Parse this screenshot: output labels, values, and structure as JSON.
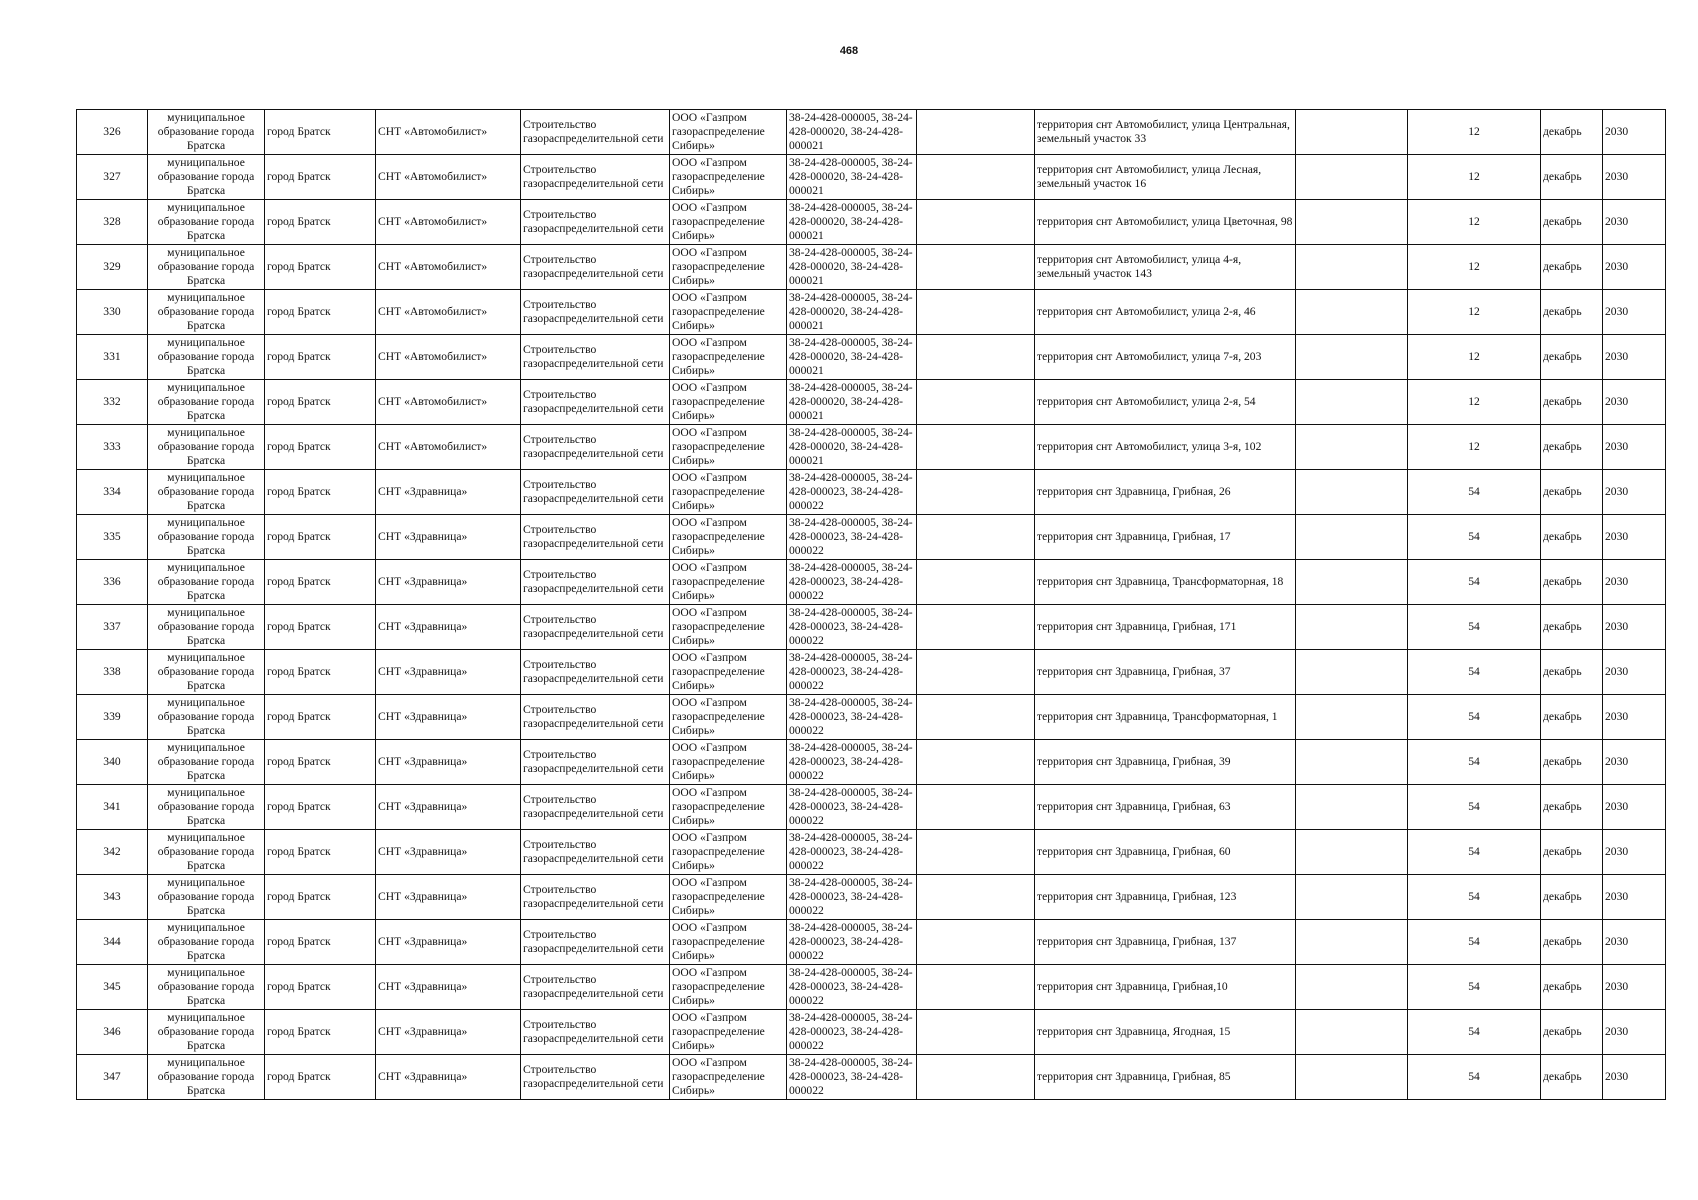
{
  "page_number": "468",
  "rows": [
    {
      "n": "326",
      "mun": "муниципальное образование города Братска",
      "city": "город Братск",
      "snt": "СНТ «Автомобилист»",
      "work": "Строительство газораспределительной сети",
      "org": "ООО «Газпром газораспределение Сибирь»",
      "cad": "38-24-428-000005, 38-24-428-000020, 38-24-428-000021",
      "e1": "",
      "addr": "территория снт Автомобилист, улица Центральная, земельный участок 33",
      "e2": "",
      "qty": "12",
      "month": "декабрь",
      "year": "2030"
    },
    {
      "n": "327",
      "mun": "муниципальное образование города Братска",
      "city": "город Братск",
      "snt": "СНТ «Автомобилист»",
      "work": "Строительство газораспределительной сети",
      "org": "ООО «Газпром газораспределение Сибирь»",
      "cad": "38-24-428-000005, 38-24-428-000020, 38-24-428-000021",
      "e1": "",
      "addr": "территория снт Автомобилист, улица Лесная, земельный участок 16",
      "e2": "",
      "qty": "12",
      "month": "декабрь",
      "year": "2030"
    },
    {
      "n": "328",
      "mun": "муниципальное образование города Братска",
      "city": "город Братск",
      "snt": "СНТ «Автомобилист»",
      "work": "Строительство газораспределительной сети",
      "org": "ООО «Газпром газораспределение Сибирь»",
      "cad": "38-24-428-000005, 38-24-428-000020, 38-24-428-000021",
      "e1": "",
      "addr": "территория снт Автомобилист, улица Цветочная, 98",
      "e2": "",
      "qty": "12",
      "month": "декабрь",
      "year": "2030"
    },
    {
      "n": "329",
      "mun": "муниципальное образование города Братска",
      "city": "город Братск",
      "snt": "СНТ «Автомобилист»",
      "work": "Строительство газораспределительной сети",
      "org": "ООО «Газпром газораспределение Сибирь»",
      "cad": "38-24-428-000005, 38-24-428-000020, 38-24-428-000021",
      "e1": "",
      "addr": "территория снт Автомобилист, улица 4-я, земельный участок 143",
      "e2": "",
      "qty": "12",
      "month": "декабрь",
      "year": "2030"
    },
    {
      "n": "330",
      "mun": "муниципальное образование города Братска",
      "city": "город Братск",
      "snt": "СНТ «Автомобилист»",
      "work": "Строительство газораспределительной сети",
      "org": "ООО «Газпром газораспределение Сибирь»",
      "cad": "38-24-428-000005, 38-24-428-000020, 38-24-428-000021",
      "e1": "",
      "addr": "территория снт Автомобилист, улица 2-я, 46",
      "e2": "",
      "qty": "12",
      "month": "декабрь",
      "year": "2030"
    },
    {
      "n": "331",
      "mun": "муниципальное образование города Братска",
      "city": "город Братск",
      "snt": "СНТ «Автомобилист»",
      "work": "Строительство газораспределительной сети",
      "org": "ООО «Газпром газораспределение Сибирь»",
      "cad": "38-24-428-000005, 38-24-428-000020, 38-24-428-000021",
      "e1": "",
      "addr": "территория снт Автомобилист, улица 7-я, 203",
      "e2": "",
      "qty": "12",
      "month": "декабрь",
      "year": "2030"
    },
    {
      "n": "332",
      "mun": "муниципальное образование города Братска",
      "city": "город Братск",
      "snt": "СНТ «Автомобилист»",
      "work": "Строительство газораспределительной сети",
      "org": "ООО «Газпром газораспределение Сибирь»",
      "cad": "38-24-428-000005, 38-24-428-000020, 38-24-428-000021",
      "e1": "",
      "addr": "территория снт Автомобилист, улица 2-я, 54",
      "e2": "",
      "qty": "12",
      "month": "декабрь",
      "year": "2030"
    },
    {
      "n": "333",
      "mun": "муниципальное образование города Братска",
      "city": "город Братск",
      "snt": "СНТ «Автомобилист»",
      "work": "Строительство газораспределительной сети",
      "org": "ООО «Газпром газораспределение Сибирь»",
      "cad": "38-24-428-000005, 38-24-428-000020, 38-24-428-000021",
      "e1": "",
      "addr": "территория снт Автомобилист, улица 3-я, 102",
      "e2": "",
      "qty": "12",
      "month": "декабрь",
      "year": "2030"
    },
    {
      "n": "334",
      "mun": "муниципальное образование города Братска",
      "city": "город Братск",
      "snt": "СНТ «Здравница»",
      "work": "Строительство газораспределительной сети",
      "org": "ООО «Газпром газораспределение Сибирь»",
      "cad": "38-24-428-000005, 38-24-428-000023, 38-24-428-000022",
      "e1": "",
      "addr": "территория снт Здравница, Грибная, 26",
      "e2": "",
      "qty": "54",
      "month": "декабрь",
      "year": "2030"
    },
    {
      "n": "335",
      "mun": "муниципальное образование города Братска",
      "city": "город Братск",
      "snt": "СНТ «Здравница»",
      "work": "Строительство газораспределительной сети",
      "org": "ООО «Газпром газораспределение Сибирь»",
      "cad": "38-24-428-000005, 38-24-428-000023, 38-24-428-000022",
      "e1": "",
      "addr": "территория снт Здравница, Грибная, 17",
      "e2": "",
      "qty": "54",
      "month": "декабрь",
      "year": "2030"
    },
    {
      "n": "336",
      "mun": "муниципальное образование города Братска",
      "city": "город Братск",
      "snt": "СНТ «Здравница»",
      "work": "Строительство газораспределительной сети",
      "org": "ООО «Газпром газораспределение Сибирь»",
      "cad": "38-24-428-000005, 38-24-428-000023, 38-24-428-000022",
      "e1": "",
      "addr": "территория снт Здравница, Трансформаторная, 18",
      "e2": "",
      "qty": "54",
      "month": "декабрь",
      "year": "2030"
    },
    {
      "n": "337",
      "mun": "муниципальное образование города Братска",
      "city": "город Братск",
      "snt": "СНТ «Здравница»",
      "work": "Строительство газораспределительной сети",
      "org": "ООО «Газпром газораспределение Сибирь»",
      "cad": "38-24-428-000005, 38-24-428-000023, 38-24-428-000022",
      "e1": "",
      "addr": "территория снт Здравница, Грибная, 171",
      "e2": "",
      "qty": "54",
      "month": "декабрь",
      "year": "2030"
    },
    {
      "n": "338",
      "mun": "муниципальное образование города Братска",
      "city": "город Братск",
      "snt": "СНТ «Здравница»",
      "work": "Строительство газораспределительной сети",
      "org": "ООО «Газпром газораспределение Сибирь»",
      "cad": "38-24-428-000005, 38-24-428-000023, 38-24-428-000022",
      "e1": "",
      "addr": "территория снт Здравница, Грибная, 37",
      "e2": "",
      "qty": "54",
      "month": "декабрь",
      "year": "2030"
    },
    {
      "n": "339",
      "mun": "муниципальное образование города Братска",
      "city": "город Братск",
      "snt": "СНТ «Здравница»",
      "work": "Строительство газораспределительной сети",
      "org": "ООО «Газпром газораспределение Сибирь»",
      "cad": "38-24-428-000005, 38-24-428-000023, 38-24-428-000022",
      "e1": "",
      "addr": "территория снт Здравница, Трансформаторная, 1",
      "e2": "",
      "qty": "54",
      "month": "декабрь",
      "year": "2030"
    },
    {
      "n": "340",
      "mun": "муниципальное образование города Братска",
      "city": "город Братск",
      "snt": "СНТ «Здравница»",
      "work": "Строительство газораспределительной сети",
      "org": "ООО «Газпром газораспределение Сибирь»",
      "cad": "38-24-428-000005, 38-24-428-000023, 38-24-428-000022",
      "e1": "",
      "addr": "территория снт Здравница, Грибная, 39",
      "e2": "",
      "qty": "54",
      "month": "декабрь",
      "year": "2030"
    },
    {
      "n": "341",
      "mun": "муниципальное образование города Братска",
      "city": "город Братск",
      "snt": "СНТ «Здравница»",
      "work": "Строительство газораспределительной сети",
      "org": "ООО «Газпром газораспределение Сибирь»",
      "cad": "38-24-428-000005, 38-24-428-000023, 38-24-428-000022",
      "e1": "",
      "addr": "территория снт Здравница, Грибная, 63",
      "e2": "",
      "qty": "54",
      "month": "декабрь",
      "year": "2030"
    },
    {
      "n": "342",
      "mun": "муниципальное образование города Братска",
      "city": "город Братск",
      "snt": "СНТ «Здравница»",
      "work": "Строительство газораспределительной сети",
      "org": "ООО «Газпром газораспределение Сибирь»",
      "cad": "38-24-428-000005, 38-24-428-000023, 38-24-428-000022",
      "e1": "",
      "addr": "территория снт Здравница, Грибная, 60",
      "e2": "",
      "qty": "54",
      "month": "декабрь",
      "year": "2030"
    },
    {
      "n": "343",
      "mun": "муниципальное образование города Братска",
      "city": "город Братск",
      "snt": "СНТ «Здравница»",
      "work": "Строительство газораспределительной сети",
      "org": "ООО «Газпром газораспределение Сибирь»",
      "cad": "38-24-428-000005, 38-24-428-000023, 38-24-428-000022",
      "e1": "",
      "addr": "территория снт Здравница, Грибная, 123",
      "e2": "",
      "qty": "54",
      "month": "декабрь",
      "year": "2030"
    },
    {
      "n": "344",
      "mun": "муниципальное образование города Братска",
      "city": "город Братск",
      "snt": "СНТ «Здравница»",
      "work": "Строительство газораспределительной сети",
      "org": "ООО «Газпром газораспределение Сибирь»",
      "cad": "38-24-428-000005, 38-24-428-000023, 38-24-428-000022",
      "e1": "",
      "addr": "территория снт Здравница, Грибная, 137",
      "e2": "",
      "qty": "54",
      "month": "декабрь",
      "year": "2030"
    },
    {
      "n": "345",
      "mun": "муниципальное образование города Братска",
      "city": "город Братск",
      "snt": "СНТ «Здравница»",
      "work": "Строительство газораспределительной сети",
      "org": "ООО «Газпром газораспределение Сибирь»",
      "cad": "38-24-428-000005, 38-24-428-000023, 38-24-428-000022",
      "e1": "",
      "addr": "территория снт Здравница, Грибная,10",
      "e2": "",
      "qty": "54",
      "month": "декабрь",
      "year": "2030"
    },
    {
      "n": "346",
      "mun": "муниципальное образование города Братска",
      "city": "город Братск",
      "snt": "СНТ «Здравница»",
      "work": "Строительство газораспределительной сети",
      "org": "ООО «Газпром газораспределение Сибирь»",
      "cad": "38-24-428-000005, 38-24-428-000023, 38-24-428-000022",
      "e1": "",
      "addr": "территория снт Здравница, Ягодная, 15",
      "e2": "",
      "qty": "54",
      "month": "декабрь",
      "year": "2030"
    },
    {
      "n": "347",
      "mun": "муниципальное образование города Братска",
      "city": "город Братск",
      "snt": "СНТ «Здравница»",
      "work": "Строительство газораспределительной сети",
      "org": "ООО «Газпром газораспределение Сибирь»",
      "cad": "38-24-428-000005, 38-24-428-000023, 38-24-428-000022",
      "e1": "",
      "addr": "территория снт Здравница, Грибная, 85",
      "e2": "",
      "qty": "54",
      "month": "декабрь",
      "year": "2030"
    }
  ]
}
